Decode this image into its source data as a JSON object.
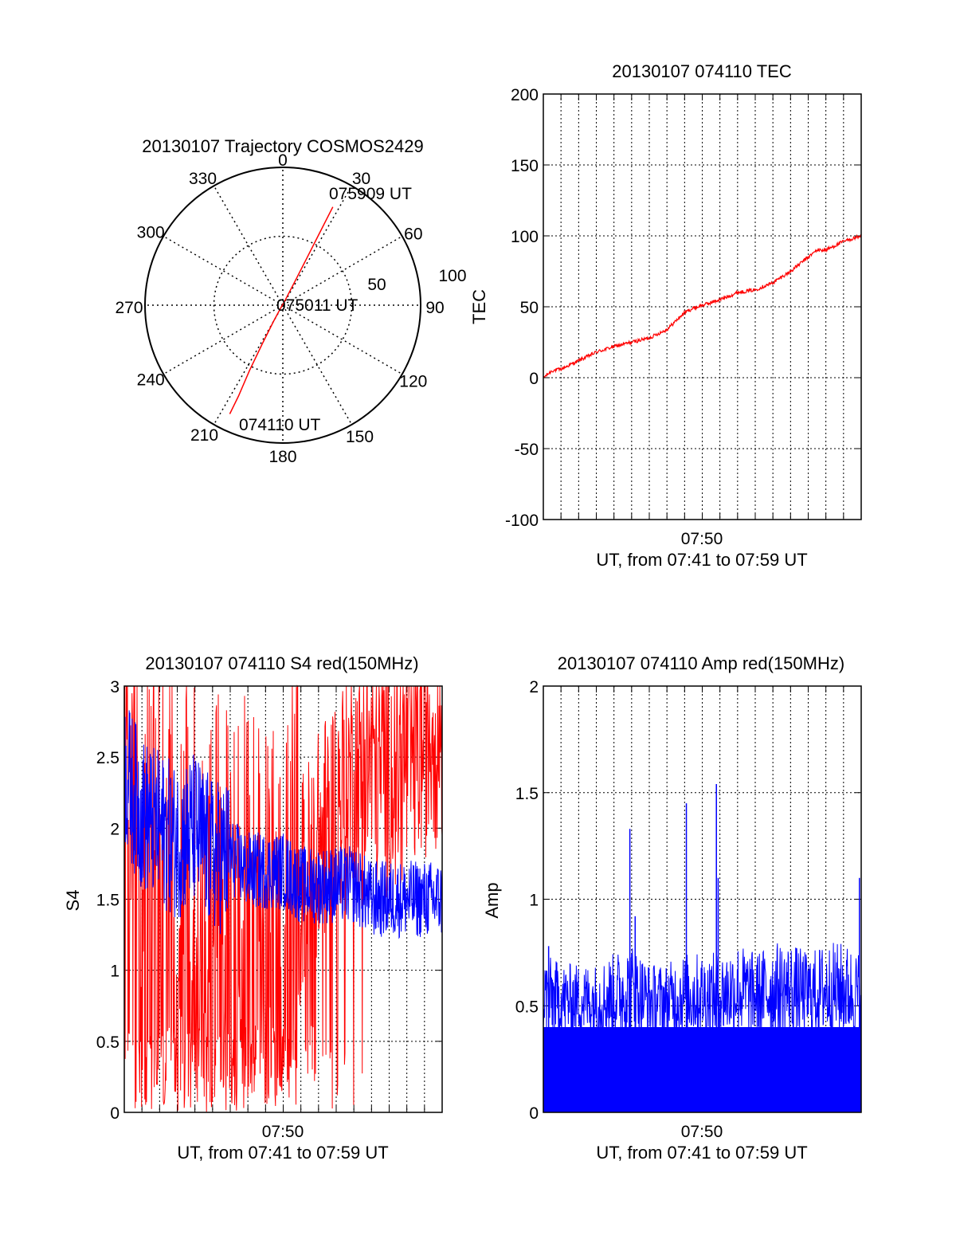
{
  "colors": {
    "background": "#ffffff",
    "axes": "#000000",
    "grid": "#000000",
    "red_series": "#ff0000",
    "blue_series": "#0000ff"
  },
  "chart_data": [
    {
      "type": "scatter",
      "subtype": "polar-trajectory",
      "title": "20130107 Trajectory COSMOS2429",
      "angle_labels": [
        "0",
        "30",
        "60",
        "90",
        "120",
        "150",
        "180",
        "210",
        "240",
        "270",
        "300",
        "330"
      ],
      "radius_labels": [
        "50",
        "100"
      ],
      "grid": true,
      "series": [
        {
          "color": "#ff0000",
          "points": [
            {
              "az": 206,
              "el": 11
            },
            {
              "az": 206,
              "el": 24
            },
            {
              "az": 207,
              "el": 42
            },
            {
              "az": 208,
              "el": 62
            },
            {
              "az": 210,
              "el": 78
            },
            {
              "az": 215,
              "el": 87
            },
            {
              "az": 25,
              "el": 87
            },
            {
              "az": 27,
              "el": 72
            },
            {
              "az": 27,
              "el": 56
            },
            {
              "az": 27,
              "el": 38
            },
            {
              "az": 27,
              "el": 18
            }
          ]
        }
      ],
      "annotations": [
        {
          "text": "074110 UT",
          "az": 206,
          "el": 11
        },
        {
          "text": "075011 UT",
          "az": 100,
          "el": 89
        },
        {
          "text": "075909 UT",
          "az": 27,
          "el": 18
        }
      ]
    },
    {
      "type": "line",
      "title": "20130107 074110 TEC",
      "xlabel": "UT, from 07:41 to 07:59 UT",
      "ylabel": "TEC",
      "xlim": [
        0,
        18
      ],
      "ylim": [
        -100,
        200
      ],
      "x_tick_labels": [
        {
          "x": 9,
          "label": "07:50"
        }
      ],
      "y_ticks": [
        -100,
        -50,
        0,
        50,
        100,
        150,
        200
      ],
      "grid": true,
      "series": [
        {
          "color": "#ff0000",
          "x": [
            0,
            0.5,
            1,
            2,
            3,
            4,
            5,
            6,
            7,
            8,
            8.5,
            9,
            9.5,
            10,
            11,
            12,
            13,
            14,
            15,
            15.5,
            16,
            17,
            18
          ],
          "y": [
            0,
            5,
            6,
            12,
            18,
            22,
            25,
            28,
            34,
            46,
            49,
            51,
            53,
            55,
            60,
            62,
            67,
            75,
            85,
            90,
            90,
            96,
            100
          ]
        }
      ]
    },
    {
      "type": "line",
      "title": "20130107 074110 S4 red(150MHz)",
      "xlabel": "UT, from 07:41 to 07:59 UT",
      "ylabel": "S4",
      "xlim": [
        0,
        18
      ],
      "ylim": [
        0,
        3
      ],
      "x_tick_labels": [
        {
          "x": 9,
          "label": "07:50"
        }
      ],
      "y_ticks": [
        0,
        0.5,
        1,
        1.5,
        2,
        2.5,
        3
      ],
      "grid": true,
      "series": [
        {
          "color": "#ff0000",
          "description_free": true,
          "x": [
            0,
            1,
            2,
            3,
            4,
            5,
            6,
            7,
            8,
            9,
            10,
            11,
            12,
            13,
            14,
            15,
            16,
            17,
            18
          ],
          "y": [
            1.8,
            1.6,
            1.5,
            1.4,
            1.3,
            1.3,
            1.2,
            1.2,
            1.2,
            1.3,
            1.6,
            1.9,
            2.2,
            2.4,
            2.3,
            2.2,
            2.3,
            2.5,
            2.6
          ]
        },
        {
          "color": "#0000ff",
          "x": [
            0,
            1,
            2,
            3,
            4,
            5,
            6,
            7,
            8,
            9,
            10,
            11,
            12,
            13,
            14,
            15,
            16,
            17,
            18
          ],
          "y": [
            2.4,
            2.1,
            2.0,
            1.9,
            2.0,
            1.8,
            1.8,
            1.7,
            1.7,
            1.7,
            1.6,
            1.6,
            1.6,
            1.6,
            1.5,
            1.5,
            1.5,
            1.5,
            1.5
          ]
        }
      ]
    },
    {
      "type": "bar",
      "title": "20130107 074110 Amp red(150MHz)",
      "xlabel": "UT, from 07:41 to 07:59 UT",
      "ylabel": "Amp",
      "xlim": [
        0,
        18
      ],
      "ylim": [
        0,
        2
      ],
      "x_tick_labels": [
        {
          "x": 9,
          "label": "07:50"
        }
      ],
      "y_ticks": [
        0,
        0.5,
        1,
        1.5,
        2
      ],
      "grid": true,
      "series": [
        {
          "color": "#0000ff",
          "baseline": 0.4,
          "x": [
            0,
            1,
            2,
            3,
            4,
            5,
            6,
            7,
            8,
            9,
            10,
            11,
            12,
            13,
            14,
            15,
            16,
            17,
            18
          ],
          "y": [
            0.55,
            0.5,
            0.5,
            0.5,
            0.55,
            0.6,
            0.5,
            0.5,
            0.55,
            0.55,
            0.55,
            0.6,
            0.55,
            0.6,
            0.6,
            0.55,
            0.6,
            0.6,
            0.55
          ],
          "peaks": [
            {
              "x": 0.3,
              "y": 0.78
            },
            {
              "x": 4.9,
              "y": 1.33
            },
            {
              "x": 5.2,
              "y": 0.92
            },
            {
              "x": 8.1,
              "y": 1.45
            },
            {
              "x": 9.8,
              "y": 1.54
            },
            {
              "x": 9.9,
              "y": 1.1
            },
            {
              "x": 17.9,
              "y": 1.1
            }
          ]
        }
      ]
    }
  ]
}
